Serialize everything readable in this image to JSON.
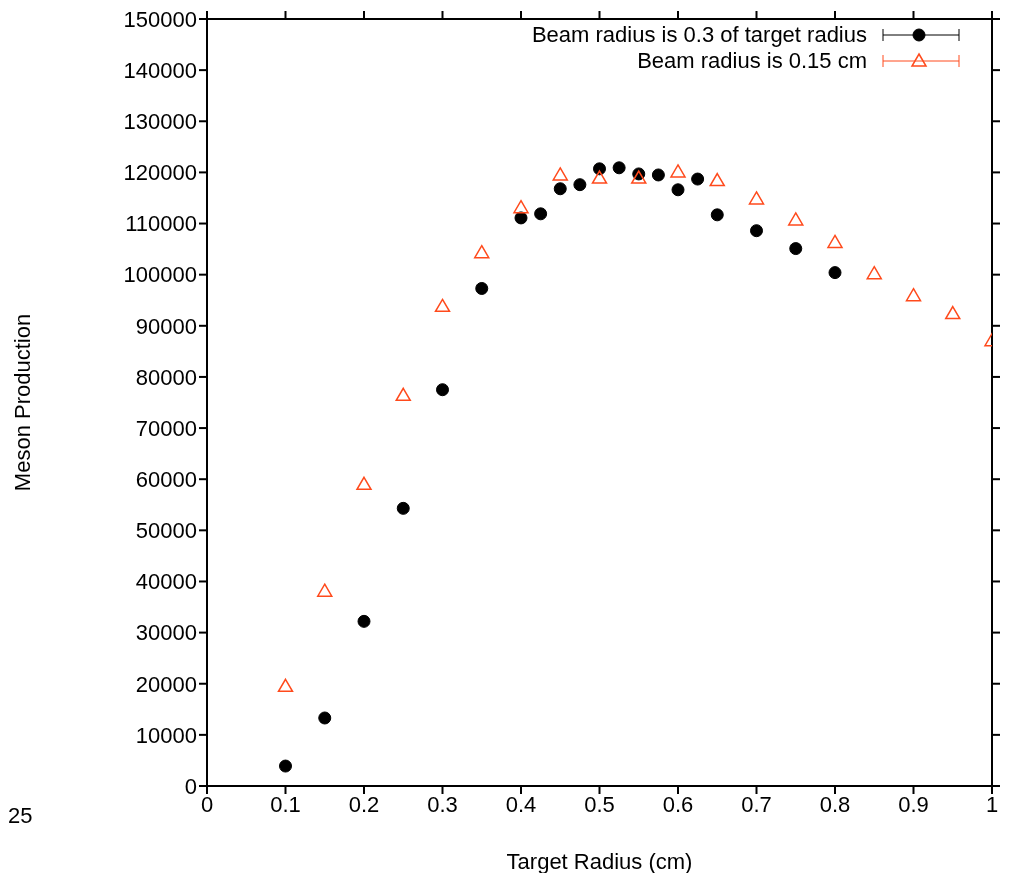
{
  "chart_data": {
    "type": "scatter",
    "xlabel": "Target Radius (cm)",
    "ylabel": "Meson Production",
    "xlim": [
      0,
      1
    ],
    "xticks": [
      0,
      0.1,
      0.2,
      0.3,
      0.4,
      0.5,
      0.6,
      0.7,
      0.8,
      0.9,
      1
    ],
    "ylim": [
      0,
      150000
    ],
    "yticks": [
      0,
      10000,
      20000,
      30000,
      40000,
      50000,
      60000,
      70000,
      80000,
      90000,
      100000,
      110000,
      120000,
      130000,
      140000,
      150000
    ],
    "legend": "top right",
    "annotations": [
      "25"
    ],
    "series": [
      {
        "name": "Beam radius is 0.3 of target radius",
        "color": "#000000",
        "marker": "circle",
        "x": [
          0.1,
          0.15,
          0.2,
          0.25,
          0.3,
          0.35,
          0.4,
          0.425,
          0.45,
          0.475,
          0.5,
          0.525,
          0.55,
          0.575,
          0.6,
          0.625,
          0.65,
          0.7,
          0.75,
          0.8
        ],
        "values": [
          3900,
          13300,
          32200,
          54300,
          77500,
          97300,
          111100,
          111900,
          116800,
          117600,
          120700,
          120900,
          119700,
          119500,
          116600,
          118700,
          111700,
          108600,
          105100,
          100400
        ]
      },
      {
        "name": "Beam radius is 0.15 cm",
        "color": "#ff4a1c",
        "marker": "triangle",
        "x": [
          0.1,
          0.15,
          0.2,
          0.25,
          0.3,
          0.35,
          0.4,
          0.45,
          0.5,
          0.55,
          0.6,
          0.65,
          0.7,
          0.75,
          0.8,
          0.85,
          0.9,
          0.95,
          1.0
        ],
        "values": [
          19500,
          38100,
          59000,
          76400,
          93800,
          104300,
          113100,
          119500,
          118900,
          118900,
          120100,
          118400,
          114800,
          110700,
          106300,
          100200,
          95900,
          92400,
          87100
        ]
      }
    ]
  }
}
